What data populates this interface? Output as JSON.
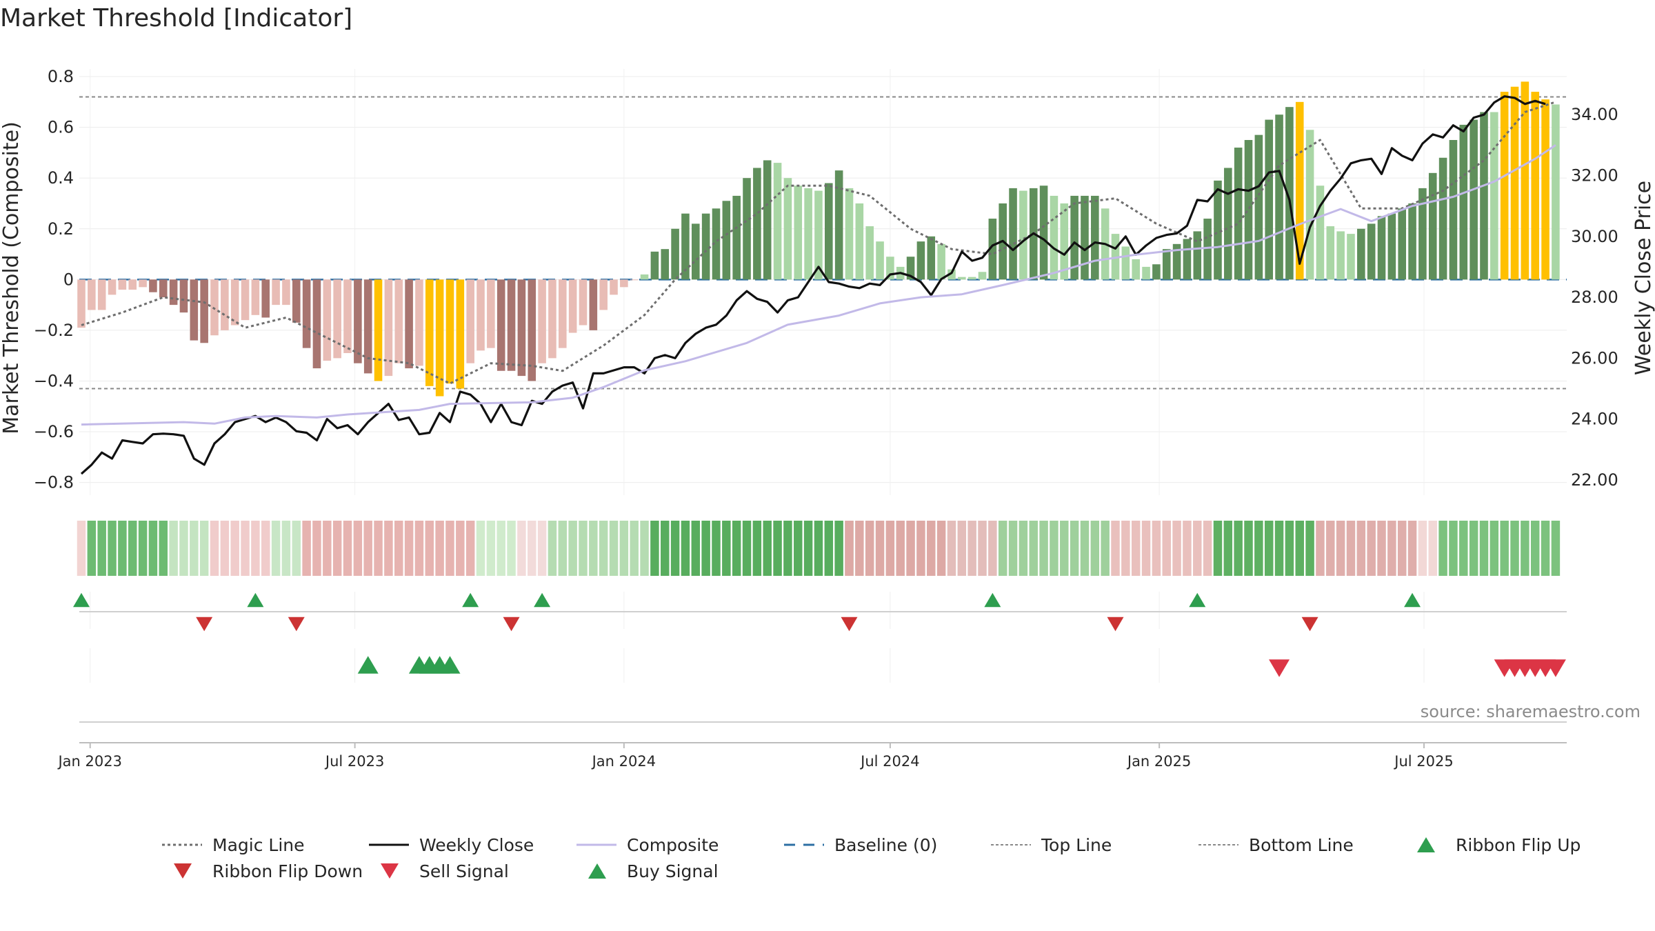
{
  "chart_data": {
    "type": "bar",
    "title": "Market Threshold [Indicator]",
    "ylabel_left": "Market Threshold (Composite)",
    "ylabel_right": "Weekly Close Price",
    "ylim_left": [
      -0.85,
      0.83
    ],
    "ylim_right": [
      21.5,
      35.5
    ],
    "left_ticks": [
      {
        "value": 0.8,
        "label": "0.8"
      },
      {
        "value": 0.6,
        "label": "0.6"
      },
      {
        "value": 0.4,
        "label": "0.4"
      },
      {
        "value": 0.2,
        "label": "0.2"
      },
      {
        "value": 0,
        "label": "0"
      },
      {
        "value": -0.2,
        "label": "−0.2"
      },
      {
        "value": -0.4,
        "label": "−0.4"
      },
      {
        "value": -0.6,
        "label": "−0.6"
      },
      {
        "value": -0.8,
        "label": "−0.8"
      }
    ],
    "right_ticks": [
      {
        "value": 34,
        "label": "34.00"
      },
      {
        "value": 32,
        "label": "32.00"
      },
      {
        "value": 30,
        "label": "30.00"
      },
      {
        "value": 28,
        "label": "28.00"
      },
      {
        "value": 26,
        "label": "26.00"
      },
      {
        "value": 24,
        "label": "24.00"
      },
      {
        "value": 22,
        "label": "22.00"
      }
    ],
    "x_range": [
      "2022-12-26",
      "2025-10-08"
    ],
    "x_ticks": [
      {
        "date": "2023-01-01",
        "label": "Jan 2023"
      },
      {
        "date": "2023-07-01",
        "label": "Jul 2023"
      },
      {
        "date": "2024-01-01",
        "label": "Jan 2024"
      },
      {
        "date": "2024-07-01",
        "label": "Jul 2024"
      },
      {
        "date": "2025-01-01",
        "label": "Jan 2025"
      },
      {
        "date": "2025-07-01",
        "label": "Jul 2025"
      }
    ],
    "first_bar_date": "2022-12-26",
    "bar_interval_days": 7,
    "top_line": 0.72,
    "bottom_line": -0.43,
    "baseline": 0,
    "composite_bars": [
      -0.19,
      -0.12,
      -0.12,
      -0.06,
      -0.04,
      -0.04,
      -0.03,
      -0.05,
      -0.07,
      -0.1,
      -0.13,
      -0.24,
      -0.25,
      -0.22,
      -0.2,
      -0.18,
      -0.16,
      -0.14,
      -0.15,
      -0.1,
      -0.1,
      -0.17,
      -0.27,
      -0.35,
      -0.32,
      -0.31,
      -0.29,
      -0.33,
      -0.37,
      -0.4,
      -0.38,
      -0.33,
      -0.35,
      -0.34,
      -0.42,
      -0.46,
      -0.41,
      -0.43,
      -0.33,
      -0.28,
      -0.27,
      -0.36,
      -0.36,
      -0.38,
      -0.4,
      -0.33,
      -0.31,
      -0.27,
      -0.21,
      -0.18,
      -0.2,
      -0.12,
      -0.06,
      -0.03,
      0,
      0.02,
      0.11,
      0.12,
      0.2,
      0.26,
      0.22,
      0.26,
      0.28,
      0.31,
      0.33,
      0.4,
      0.44,
      0.47,
      0.46,
      0.4,
      0.37,
      0.36,
      0.35,
      0.38,
      0.43,
      0.36,
      0.3,
      0.21,
      0.15,
      0.09,
      0.05,
      0.09,
      0.15,
      0.17,
      0.14,
      0.04,
      0.01,
      0.01,
      0.03,
      0.24,
      0.3,
      0.36,
      0.35,
      0.36,
      0.37,
      0.33,
      0.3,
      0.33,
      0.33,
      0.33,
      0.28,
      0.18,
      0.13,
      0.08,
      0.05,
      0.06,
      0.12,
      0.14,
      0.16,
      0.19,
      0.24,
      0.39,
      0.44,
      0.52,
      0.55,
      0.57,
      0.63,
      0.65,
      0.68,
      0.7,
      0.59,
      0.37,
      0.21,
      0.19,
      0.18,
      0.2,
      0.22,
      0.25,
      0.26,
      0.28,
      0.3,
      0.36,
      0.42,
      0.48,
      0.55,
      0.61,
      0.63,
      0.66,
      0.66,
      0.74,
      0.76,
      0.78,
      0.74,
      0.71,
      0.69
    ],
    "bar_colors": [
      "#e8bcb5",
      "#e8bcb5",
      "#e8bcb5",
      "#e8bcb5",
      "#e8bcb5",
      "#e8bcb5",
      "#e8bcb5",
      "#a87570",
      "#a87570",
      "#a87570",
      "#a87570",
      "#a87570",
      "#a87570",
      "#e8bcb5",
      "#e8bcb5",
      "#e8bcb5",
      "#e8bcb5",
      "#e8bcb5",
      "#a87570",
      "#e8bcb5",
      "#e8bcb5",
      "#a87570",
      "#a87570",
      "#a87570",
      "#e8bcb5",
      "#e8bcb5",
      "#e8bcb5",
      "#a87570",
      "#a87570",
      "#ffc000",
      "#e8bcb5",
      "#e8bcb5",
      "#a87570",
      "#e8bcb5",
      "#ffc000",
      "#ffc000",
      "#ffc000",
      "#ffc000",
      "#e8bcb5",
      "#e8bcb5",
      "#e8bcb5",
      "#a87570",
      "#a87570",
      "#a87570",
      "#a87570",
      "#e8bcb5",
      "#e8bcb5",
      "#e8bcb5",
      "#e8bcb5",
      "#e8bcb5",
      "#a87570",
      "#e8bcb5",
      "#e8bcb5",
      "#e8bcb5",
      "#e8bcb5",
      "#a9d6a5",
      "#5f8f5b",
      "#5f8f5b",
      "#5f8f5b",
      "#5f8f5b",
      "#5f8f5b",
      "#5f8f5b",
      "#5f8f5b",
      "#5f8f5b",
      "#5f8f5b",
      "#5f8f5b",
      "#5f8f5b",
      "#5f8f5b",
      "#a9d6a5",
      "#a9d6a5",
      "#a9d6a5",
      "#a9d6a5",
      "#a9d6a5",
      "#5f8f5b",
      "#5f8f5b",
      "#a9d6a5",
      "#a9d6a5",
      "#a9d6a5",
      "#a9d6a5",
      "#a9d6a5",
      "#a9d6a5",
      "#5f8f5b",
      "#5f8f5b",
      "#5f8f5b",
      "#a9d6a5",
      "#a9d6a5",
      "#a9d6a5",
      "#a9d6a5",
      "#a9d6a5",
      "#5f8f5b",
      "#5f8f5b",
      "#5f8f5b",
      "#a9d6a5",
      "#5f8f5b",
      "#5f8f5b",
      "#a9d6a5",
      "#a9d6a5",
      "#5f8f5b",
      "#5f8f5b",
      "#5f8f5b",
      "#a9d6a5",
      "#a9d6a5",
      "#a9d6a5",
      "#a9d6a5",
      "#a9d6a5",
      "#5f8f5b",
      "#5f8f5b",
      "#5f8f5b",
      "#5f8f5b",
      "#5f8f5b",
      "#5f8f5b",
      "#5f8f5b",
      "#5f8f5b",
      "#5f8f5b",
      "#5f8f5b",
      "#5f8f5b",
      "#5f8f5b",
      "#5f8f5b",
      "#5f8f5b",
      "#ffc000",
      "#a9d6a5",
      "#a9d6a5",
      "#a9d6a5",
      "#a9d6a5",
      "#a9d6a5",
      "#5f8f5b",
      "#5f8f5b",
      "#5f8f5b",
      "#5f8f5b",
      "#5f8f5b",
      "#5f8f5b",
      "#5f8f5b",
      "#5f8f5b",
      "#5f8f5b",
      "#5f8f5b",
      "#5f8f5b",
      "#5f8f5b",
      "#5f8f5b",
      "#a9d6a5",
      "#ffc000",
      "#ffc000",
      "#ffc000",
      "#ffc000",
      "#ffc000",
      "#a9d6a5"
    ],
    "series": [
      {
        "name": "Magic Line",
        "kind": "line",
        "axis": "left",
        "color": "#6e6e6e",
        "style": "dotted",
        "points": [
          [
            0,
            -0.18
          ],
          [
            4,
            -0.13
          ],
          [
            8,
            -0.07
          ],
          [
            12,
            -0.09
          ],
          [
            16,
            -0.19
          ],
          [
            20,
            -0.15
          ],
          [
            24,
            -0.23
          ],
          [
            28,
            -0.31
          ],
          [
            32,
            -0.33
          ],
          [
            36,
            -0.41
          ],
          [
            40,
            -0.33
          ],
          [
            44,
            -0.34
          ],
          [
            47,
            -0.36
          ],
          [
            51,
            -0.26
          ],
          [
            55,
            -0.14
          ],
          [
            58,
            0
          ],
          [
            62,
            0.15
          ],
          [
            66,
            0.26
          ],
          [
            69,
            0.37
          ],
          [
            73,
            0.37
          ],
          [
            77,
            0.33
          ],
          [
            81,
            0.2
          ],
          [
            85,
            0.12
          ],
          [
            89,
            0.1
          ],
          [
            93,
            0.18
          ],
          [
            97,
            0.3
          ],
          [
            101,
            0.32
          ],
          [
            105,
            0.22
          ],
          [
            109,
            0.15
          ],
          [
            113,
            0.22
          ],
          [
            117,
            0.45
          ],
          [
            121,
            0.55
          ],
          [
            125,
            0.28
          ],
          [
            129,
            0.28
          ],
          [
            133,
            0.35
          ],
          [
            137,
            0.47
          ],
          [
            141,
            0.66
          ],
          [
            144,
            0.7
          ]
        ]
      },
      {
        "name": "Weekly Close",
        "kind": "line",
        "axis": "right",
        "color": "#111111",
        "style": "solid",
        "values": [
          22.2,
          22.5,
          22.9,
          22.7,
          23.3,
          23.25,
          23.2,
          23.5,
          23.52,
          23.5,
          23.45,
          22.7,
          22.5,
          23.2,
          23.5,
          23.9,
          24,
          24.1,
          23.9,
          24.05,
          23.9,
          23.6,
          23.55,
          23.3,
          24,
          23.7,
          23.8,
          23.5,
          23.9,
          24.2,
          24.5,
          23.97,
          24.05,
          23.5,
          23.55,
          24.2,
          23.9,
          24.9,
          24.8,
          24.5,
          23.9,
          24.5,
          23.9,
          23.8,
          24.6,
          24.5,
          24.9,
          25.1,
          25.2,
          24.35,
          25.5,
          25.5,
          25.6,
          25.7,
          25.7,
          25.5,
          26,
          26.1,
          26,
          26.5,
          26.8,
          27,
          27.1,
          27.4,
          27.9,
          28.2,
          27.95,
          27.85,
          27.5,
          27.9,
          28,
          28.5,
          29,
          28.5,
          28.45,
          28.35,
          28.3,
          28.45,
          28.4,
          28.75,
          28.8,
          28.7,
          28.5,
          28.07,
          28.6,
          28.8,
          29.5,
          29.2,
          29.3,
          29.7,
          29.85,
          29.55,
          29.85,
          30.1,
          29.9,
          29.6,
          29.4,
          29.8,
          29.55,
          29.8,
          29.75,
          29.6,
          30,
          29.4,
          29.7,
          29.95,
          30.05,
          30.1,
          30.35,
          31.2,
          31.15,
          31.55,
          31.4,
          31.55,
          31.5,
          31.65,
          32.1,
          32.15,
          31.2,
          29.1,
          30.3,
          31,
          31.5,
          31.9,
          32.4,
          32.5,
          32.55,
          32.05,
          32.9,
          32.65,
          32.5,
          33.05,
          33.35,
          33.25,
          33.65,
          33.45,
          33.9,
          34,
          34.4,
          34.6,
          34.55,
          34.35,
          34.45,
          34.35
        ],
        "start_date": "2022-12-26"
      },
      {
        "name": "Composite",
        "kind": "line",
        "axis": "right",
        "color": "#c2b9e8",
        "style": "solid",
        "points": [
          [
            0,
            23.82
          ],
          [
            10,
            23.9
          ],
          [
            13,
            23.85
          ],
          [
            16,
            24.05
          ],
          [
            19,
            24.1
          ],
          [
            23,
            24.05
          ],
          [
            26,
            24.15
          ],
          [
            33,
            24.3
          ],
          [
            36,
            24.5
          ],
          [
            44,
            24.55
          ],
          [
            48,
            24.7
          ],
          [
            51,
            25.05
          ],
          [
            55,
            25.6
          ],
          [
            59,
            25.9
          ],
          [
            65,
            26.5
          ],
          [
            69,
            27.1
          ],
          [
            74,
            27.4
          ],
          [
            78,
            27.8
          ],
          [
            82,
            28.0
          ],
          [
            86,
            28.1
          ],
          [
            90,
            28.4
          ],
          [
            95,
            28.8
          ],
          [
            99,
            29.2
          ],
          [
            103,
            29.4
          ],
          [
            107,
            29.55
          ],
          [
            111,
            29.65
          ],
          [
            115,
            29.85
          ],
          [
            119,
            30.4
          ],
          [
            123,
            30.9
          ],
          [
            126,
            30.5
          ],
          [
            130,
            31
          ],
          [
            134,
            31.3
          ],
          [
            138,
            31.8
          ],
          [
            142,
            32.55
          ],
          [
            144,
            33.0
          ]
        ]
      },
      {
        "name": "Baseline (0)",
        "kind": "line",
        "axis": "left",
        "color": "#2d6fa3",
        "style": "dashed"
      },
      {
        "name": "Top Line",
        "kind": "line",
        "axis": "left",
        "color": "#888888",
        "style": "dotted"
      },
      {
        "name": "Bottom Line",
        "kind": "line",
        "axis": "left",
        "color": "#888888",
        "style": "dotted"
      }
    ],
    "ribbon_colors": [
      {
        "from": 0,
        "to": 1,
        "color": "#f2d4d2"
      },
      {
        "from": 1,
        "to": 9,
        "color": "#6dbb72"
      },
      {
        "from": 9,
        "to": 13,
        "color": "#c4e4c1"
      },
      {
        "from": 13,
        "to": 19,
        "color": "#f0cccb"
      },
      {
        "from": 19,
        "to": 22,
        "color": "#c8e6c6"
      },
      {
        "from": 22,
        "to": 39,
        "color": "#e6b3b0"
      },
      {
        "from": 39,
        "to": 43,
        "color": "#d0ebcc"
      },
      {
        "from": 43,
        "to": 46,
        "color": "#f2dbda"
      },
      {
        "from": 46,
        "to": 56,
        "color": "#b5dcb2"
      },
      {
        "from": 56,
        "to": 75,
        "color": "#58ad5e"
      },
      {
        "from": 75,
        "to": 75.5,
        "color": "#a9d5a6"
      },
      {
        "from": 75.5,
        "to": 85,
        "color": "#dda9a5"
      },
      {
        "from": 85,
        "to": 90,
        "color": "#e3bdba"
      },
      {
        "from": 90,
        "to": 101,
        "color": "#9fd09c"
      },
      {
        "from": 101,
        "to": 111,
        "color": "#e9c0bd"
      },
      {
        "from": 111,
        "to": 121,
        "color": "#5eb062"
      },
      {
        "from": 121,
        "to": 131,
        "color": "#dfaeab"
      },
      {
        "from": 131,
        "to": 133,
        "color": "#f2d8d6"
      },
      {
        "from": 133,
        "to": 145,
        "color": "#7cc27e"
      }
    ],
    "ribbon_flip_up": [
      "2022-12-26",
      "2023-04-24",
      "2023-09-18",
      "2023-11-06",
      "2024-09-09",
      "2025-01-27",
      "2025-06-23"
    ],
    "ribbon_flip_down": [
      "2023-03-20",
      "2023-05-22",
      "2023-10-16",
      "2024-06-03",
      "2024-12-02",
      "2025-04-14"
    ],
    "buy_signals": [
      "2023-07-10",
      "2023-08-14",
      "2023-08-21",
      "2023-08-28",
      "2023-09-04"
    ],
    "sell_signals": [
      "2025-03-24",
      "2025-08-25",
      "2025-09-01",
      "2025-09-08",
      "2025-09-15",
      "2025-09-22",
      "2025-09-29"
    ],
    "legend": [
      {
        "label": "Magic Line",
        "kind": "dotted",
        "color": "#6e6e6e"
      },
      {
        "label": "Weekly Close",
        "kind": "solid",
        "color": "#111111"
      },
      {
        "label": "Composite",
        "kind": "solid",
        "color": "#c2b9e8"
      },
      {
        "label": "Baseline (0)",
        "kind": "dashed",
        "color": "#2d6fa3"
      },
      {
        "label": "Top Line",
        "kind": "dotted-thin",
        "color": "#888888"
      },
      {
        "label": "Bottom Line",
        "kind": "dotted-thin",
        "color": "#888888"
      },
      {
        "label": "Ribbon Flip Up",
        "kind": "tri-up",
        "color": "#2e9e4f"
      },
      {
        "label": "Ribbon Flip Down",
        "kind": "tri-down",
        "color": "#cc3333"
      },
      {
        "label": "Sell Signal",
        "kind": "tri-down",
        "color": "#dc3545"
      },
      {
        "label": "Buy Signal",
        "kind": "tri-up",
        "color": "#2e9e4f"
      }
    ],
    "legend_placement": "bottom",
    "source": "source: sharemaestro.com"
  }
}
